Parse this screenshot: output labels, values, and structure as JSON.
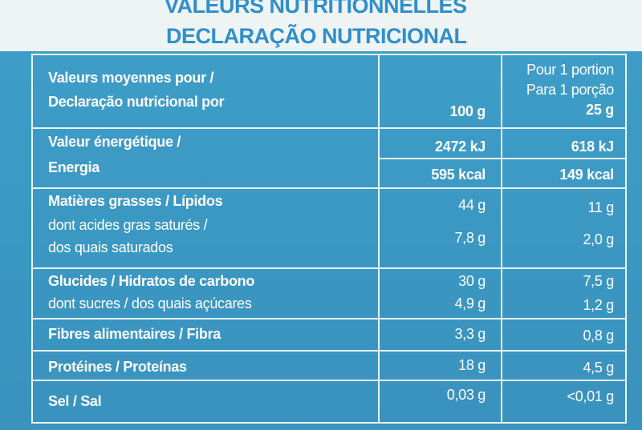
{
  "header": {
    "title_fr": "VALEURS NUTRITIONNELLES",
    "title_pt": "DECLARAÇÃO NUTRICIONAL"
  },
  "table": {
    "head": {
      "label": [
        "Valeurs moyennes pour /",
        "Declaração nutricional por"
      ],
      "per_100": "100 g",
      "per_portion": [
        "Pour 1 portion",
        "Para 1 porção",
        "25 g"
      ]
    },
    "rows": [
      {
        "label": [
          "Valeur énergétique /",
          "Energia"
        ],
        "per_100": [
          "2472 kJ",
          "595 kcal"
        ],
        "per_portion": [
          "618 kJ",
          "149 kcal"
        ]
      },
      {
        "label": [
          "Matières grasses / Lípidos"
        ],
        "per_100": [
          "44 g"
        ],
        "per_portion": [
          "11 g"
        ]
      },
      {
        "label": [
          "dont acides gras saturés /",
          "dos quais saturados"
        ],
        "per_100": [
          "7,8 g"
        ],
        "per_portion": [
          "2,0 g"
        ]
      },
      {
        "label": [
          "Glucides / Hidratos de carbono"
        ],
        "per_100": [
          "30 g"
        ],
        "per_portion": [
          "7,5 g"
        ]
      },
      {
        "label": [
          "dont sucres / dos quais açúcares"
        ],
        "per_100": [
          "4,9 g"
        ],
        "per_portion": [
          "1,2 g"
        ]
      },
      {
        "label": [
          "Fibres alimentaires / Fibra"
        ],
        "per_100": [
          "3,3 g"
        ],
        "per_portion": [
          "0,8 g"
        ]
      },
      {
        "label": [
          "Protéines / Proteínas"
        ],
        "per_100": [
          "18 g"
        ],
        "per_portion": [
          "4,5 g"
        ]
      },
      {
        "label": [
          "Sel / Sal"
        ],
        "per_100": [
          "0,03 g"
        ],
        "per_portion": [
          "<0,01 g"
        ]
      }
    ]
  }
}
